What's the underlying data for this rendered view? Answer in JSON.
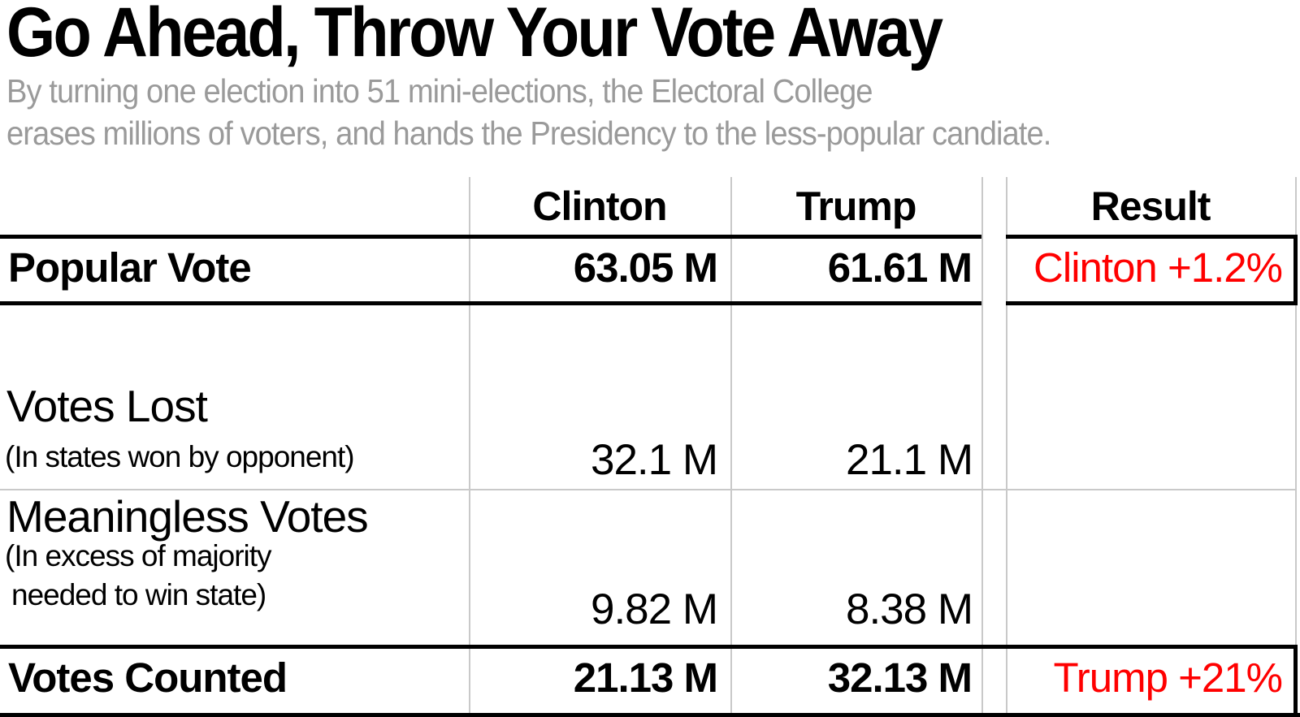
{
  "header": {
    "title": "Go Ahead, Throw Your Vote Away",
    "subtitle_line1": "By turning one election into 51 mini-elections, the Electoral College",
    "subtitle_line2": "erases millions of voters, and hands the Presidency to the less-popular candiate."
  },
  "colors": {
    "text_black": "#000000",
    "subtitle_gray": "#9a9a9a",
    "result_red": "#ff0000",
    "gridline_gray": "#c9c9c9"
  },
  "table": {
    "columns": {
      "clinton": "Clinton",
      "trump": "Trump",
      "result": "Result"
    },
    "rows": {
      "popular": {
        "label": "Popular Vote",
        "clinton": "63.05 M",
        "trump": "61.61 M",
        "result": "Clinton +1.2%"
      },
      "lost": {
        "label": "Votes Lost",
        "note": "(In states won by opponent)",
        "clinton": "32.1 M",
        "trump": "21.1 M"
      },
      "meaningless": {
        "label": "Meaningless Votes",
        "note1": "(In excess of majority",
        "note2": "needed to win state)",
        "clinton": "9.82 M",
        "trump": "8.38 M"
      },
      "counted": {
        "label": "Votes Counted",
        "clinton": "21.13 M",
        "trump": "32.13 M",
        "result": "Trump +21%"
      }
    }
  },
  "chart_data": {
    "type": "table",
    "title": "Go Ahead, Throw Your Vote Away",
    "subtitle": "By turning one election into 51 mini-elections, the Electoral College erases millions of voters, and hands the Presidency to the less-popular candiate.",
    "units": "millions of votes",
    "columns": [
      "Clinton",
      "Trump",
      "Result"
    ],
    "rows": [
      {
        "label": "Popular Vote",
        "clinton_millions": 63.05,
        "trump_millions": 61.61,
        "result": "Clinton +1.2%",
        "result_color": "#ff0000",
        "emphasized": true
      },
      {
        "label": "Votes Lost (In states won by opponent)",
        "clinton_millions": 32.1,
        "trump_millions": 21.1,
        "result": "",
        "emphasized": false
      },
      {
        "label": "Meaningless Votes (In excess of majority needed to win state)",
        "clinton_millions": 9.82,
        "trump_millions": 8.38,
        "result": "",
        "emphasized": false
      },
      {
        "label": "Votes Counted",
        "clinton_millions": 21.13,
        "trump_millions": 32.13,
        "result": "Trump +21%",
        "result_color": "#ff0000",
        "emphasized": true
      }
    ]
  }
}
